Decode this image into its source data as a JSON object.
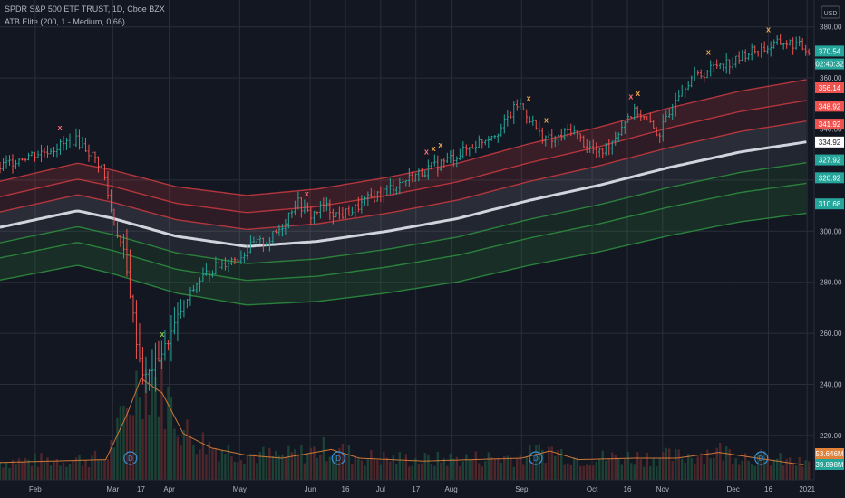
{
  "header": {
    "symbol_line": "SPDR S&P 500 ETF TRUST, 1D, Cboe BZX",
    "indicator_line": "ATB Elite (200, 1 - Medium, 0.66)"
  },
  "colors": {
    "background": "#131722",
    "grid": "#2a2e39",
    "axis_text": "#b2b5be",
    "up": "#26a69a",
    "down": "#ef5350",
    "center_line": "#d1d4dc",
    "red_band": "#c2393f",
    "green_band": "#2e8b3e",
    "volume_ma": "#e0823a"
  },
  "chart_data": {
    "type": "line",
    "currency": "USD",
    "ylim": [
      200,
      390
    ],
    "y_ticks": [
      "380.00",
      "360.00",
      "340.00",
      "320.00",
      "300.00",
      "280.00",
      "260.00",
      "240.00",
      "220.00"
    ],
    "x_ticks": [
      "Feb",
      "Mar",
      "17",
      "Apr",
      "May",
      "Jun",
      "16",
      "Jul",
      "17",
      "Aug",
      "Sep",
      "Oct",
      "16",
      "Nov",
      "Dec",
      "16",
      "2021"
    ],
    "x_tick_pos": [
      1.5,
      2.6,
      3.0,
      3.4,
      4.4,
      5.4,
      5.9,
      6.4,
      6.9,
      7.4,
      8.4,
      9.4,
      9.9,
      10.4,
      11.4,
      11.9,
      12.45
    ],
    "price_labels": [
      {
        "text": "370.54",
        "value": 370.54,
        "color": "#26a69a"
      },
      {
        "text": "02:40:32",
        "value": 365.5,
        "color": "#26a69a"
      },
      {
        "text": "356.14",
        "value": 356.14,
        "color": "#ef5350"
      },
      {
        "text": "348.92",
        "value": 348.92,
        "color": "#ef5350"
      },
      {
        "text": "341.92",
        "value": 341.92,
        "color": "#ef5350"
      },
      {
        "text": "334.92",
        "value": 334.92,
        "color": "#ffffff"
      },
      {
        "text": "327.92",
        "value": 327.92,
        "color": "#26a69a"
      },
      {
        "text": "320.92",
        "value": 320.92,
        "color": "#26a69a"
      },
      {
        "text": "310.68",
        "value": 310.68,
        "color": "#26a69a"
      }
    ],
    "volume_labels": [
      {
        "text": "53.646M",
        "color": "#e0823a"
      },
      {
        "text": "39.898M",
        "color": "#26a69a"
      }
    ],
    "price_keys": [
      [
        1.0,
        325
      ],
      [
        1.3,
        329
      ],
      [
        1.6,
        331
      ],
      [
        1.9,
        334
      ],
      [
        2.05,
        336
      ],
      [
        2.2,
        333
      ],
      [
        2.45,
        325
      ],
      [
        2.6,
        305
      ],
      [
        2.75,
        292
      ],
      [
        2.85,
        275
      ],
      [
        2.95,
        254
      ],
      [
        3.05,
        242
      ],
      [
        3.2,
        248
      ],
      [
        3.35,
        255
      ],
      [
        3.55,
        268
      ],
      [
        3.8,
        280
      ],
      [
        4.0,
        285
      ],
      [
        4.2,
        288
      ],
      [
        4.4,
        290
      ],
      [
        4.6,
        295
      ],
      [
        4.8,
        296
      ],
      [
        5.0,
        302
      ],
      [
        5.2,
        312
      ],
      [
        5.4,
        306
      ],
      [
        5.6,
        310
      ],
      [
        5.8,
        306
      ],
      [
        6.0,
        308
      ],
      [
        6.2,
        312
      ],
      [
        6.4,
        315
      ],
      [
        6.6,
        318
      ],
      [
        6.9,
        322
      ],
      [
        7.2,
        326
      ],
      [
        7.5,
        330
      ],
      [
        7.8,
        335
      ],
      [
        8.1,
        340
      ],
      [
        8.35,
        350
      ],
      [
        8.5,
        345
      ],
      [
        8.65,
        338
      ],
      [
        8.85,
        335
      ],
      [
        9.1,
        340
      ],
      [
        9.3,
        334
      ],
      [
        9.5,
        330
      ],
      [
        9.7,
        336
      ],
      [
        9.9,
        345
      ],
      [
        10.05,
        347
      ],
      [
        10.2,
        342
      ],
      [
        10.35,
        338
      ],
      [
        10.5,
        346
      ],
      [
        10.6,
        354
      ],
      [
        10.8,
        360
      ],
      [
        11.0,
        362
      ],
      [
        11.2,
        366
      ],
      [
        11.4,
        366
      ],
      [
        11.6,
        370
      ],
      [
        11.9,
        372
      ],
      [
        12.1,
        374
      ],
      [
        12.3,
        373
      ],
      [
        12.45,
        371
      ]
    ],
    "center_keys": [
      [
        1.0,
        301.5
      ],
      [
        2.1,
        308
      ],
      [
        2.6,
        305
      ],
      [
        3.5,
        298
      ],
      [
        4.5,
        294
      ],
      [
        5.5,
        296
      ],
      [
        6.5,
        300
      ],
      [
        7.5,
        305
      ],
      [
        8.5,
        312
      ],
      [
        9.5,
        318
      ],
      [
        10.5,
        325
      ],
      [
        11.5,
        331
      ],
      [
        12.45,
        335
      ]
    ],
    "band_offsets": [
      21.2,
      14.1,
      7.1,
      -7.1,
      -14.1,
      -24.3
    ],
    "x_markers": [
      {
        "x": 1.85,
        "kind": "x-red"
      },
      {
        "x": 3.3,
        "kind": "x-green"
      },
      {
        "x": 5.35,
        "kind": "x-red"
      },
      {
        "x": 7.05,
        "kind": "x-red"
      },
      {
        "x": 7.15,
        "kind": "x-orange"
      },
      {
        "x": 7.25,
        "kind": "x-orange"
      },
      {
        "x": 8.5,
        "kind": "x-orange"
      },
      {
        "x": 8.75,
        "kind": "x-orange"
      },
      {
        "x": 9.95,
        "kind": "x-red"
      },
      {
        "x": 10.05,
        "kind": "x-orange"
      },
      {
        "x": 11.05,
        "kind": "x-orange"
      },
      {
        "x": 11.9,
        "kind": "x-orange"
      }
    ],
    "dividend_markers": [
      2.85,
      5.8,
      8.6,
      11.8
    ],
    "dividend_label": "D",
    "volume_ma_keys": [
      [
        1.0,
        0.12
      ],
      [
        2.5,
        0.14
      ],
      [
        2.8,
        0.45
      ],
      [
        3.0,
        0.7
      ],
      [
        3.3,
        0.6
      ],
      [
        3.6,
        0.32
      ],
      [
        4.0,
        0.22
      ],
      [
        4.5,
        0.17
      ],
      [
        5.0,
        0.15
      ],
      [
        5.7,
        0.21
      ],
      [
        6.1,
        0.15
      ],
      [
        7.0,
        0.13
      ],
      [
        8.4,
        0.15
      ],
      [
        8.8,
        0.2
      ],
      [
        9.2,
        0.14
      ],
      [
        10.0,
        0.15
      ],
      [
        10.6,
        0.15
      ],
      [
        11.2,
        0.19
      ],
      [
        11.6,
        0.16
      ],
      [
        12.45,
        0.1
      ]
    ]
  }
}
